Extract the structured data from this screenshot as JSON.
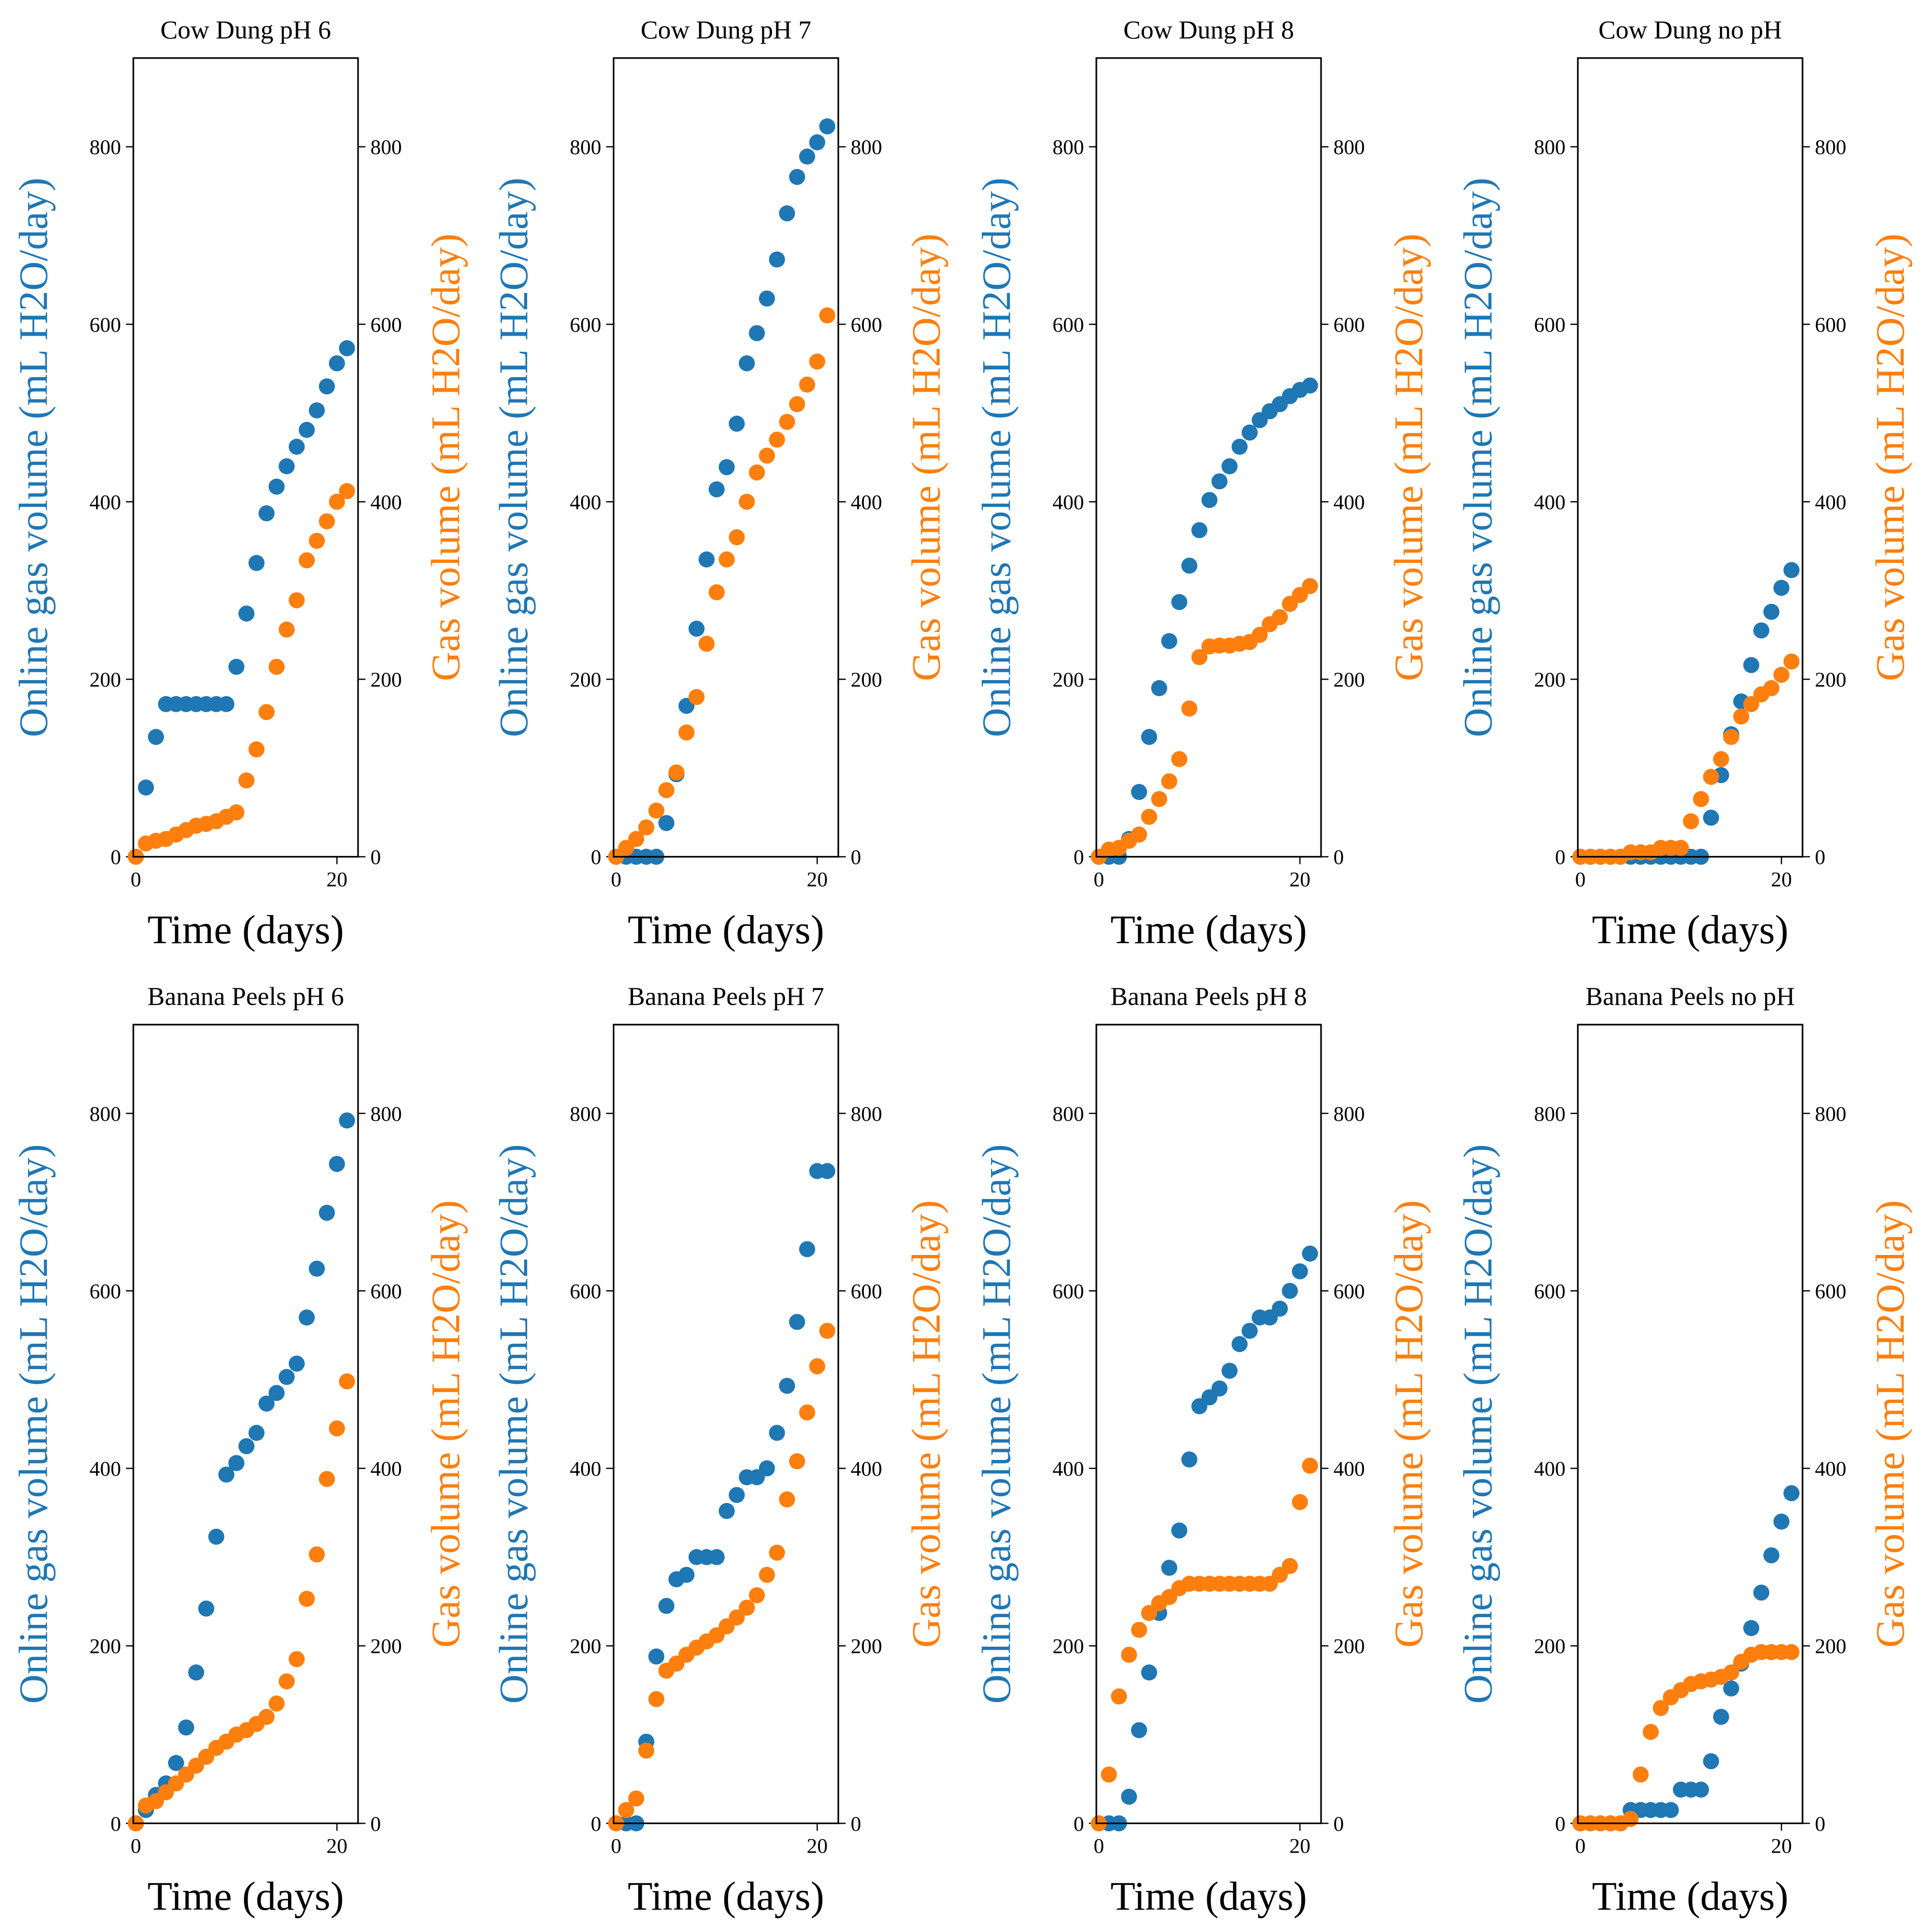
{
  "chart_data": [
    {
      "type": "scatter",
      "title": "Cow Dung pH 6",
      "x_label": "Time (days)",
      "y_label": "Online gas volume (mL H2O/day)",
      "y2_label": "Gas volume (mL H2O/day)",
      "x": [
        0,
        1,
        2,
        3,
        4,
        5,
        6,
        7,
        8,
        9,
        10,
        11,
        12,
        13,
        14,
        15,
        16,
        17,
        18,
        19,
        20,
        21
      ],
      "series": [
        {
          "color": "#1f77b4",
          "values": [
            0,
            78,
            135,
            172,
            172,
            172,
            172,
            172,
            172,
            172,
            214,
            274,
            331,
            387,
            417,
            440,
            462,
            481,
            503,
            530,
            556,
            573
          ]
        },
        {
          "color": "#ff7f0e",
          "axis": "y2",
          "values": [
            0,
            15,
            18,
            20,
            25,
            30,
            35,
            37,
            40,
            45,
            50,
            86,
            121,
            163,
            214,
            256,
            289,
            334,
            356,
            378,
            400,
            412
          ]
        }
      ],
      "xlim": [
        -0.25,
        22.1
      ],
      "xticks": [
        0,
        20
      ],
      "ylim": [
        0,
        900
      ],
      "yticks": [
        0,
        200,
        400,
        600,
        800
      ],
      "y2lim": [
        0,
        900
      ],
      "y2ticks": [
        0,
        200,
        400,
        600,
        800
      ]
    },
    {
      "type": "scatter",
      "title": "Cow Dung pH 7",
      "x_label": "Time (days)",
      "y_label": "Online gas volume (mL H2O/day)",
      "y2_label": "Gas volume (mL H2O/day)",
      "x": [
        0,
        1,
        2,
        3,
        4,
        5,
        6,
        7,
        8,
        9,
        10,
        11,
        12,
        13,
        14,
        15,
        16,
        17,
        18,
        19,
        20,
        21
      ],
      "series": [
        {
          "color": "#1f77b4",
          "values": [
            0,
            0,
            0,
            0,
            0,
            38,
            93,
            170,
            257,
            335,
            414,
            439,
            488,
            556,
            590,
            629,
            673,
            725,
            766,
            789,
            805,
            823
          ]
        },
        {
          "color": "#ff7f0e",
          "axis": "y2",
          "values": [
            0,
            10,
            20,
            33,
            52,
            75,
            95,
            140,
            180,
            240,
            298,
            335,
            360,
            400,
            433,
            452,
            470,
            490,
            510,
            532,
            558,
            610
          ]
        }
      ],
      "xlim": [
        -0.25,
        22.1
      ],
      "xticks": [
        0,
        20
      ],
      "ylim": [
        0,
        900
      ],
      "yticks": [
        0,
        200,
        400,
        600,
        800
      ],
      "y2lim": [
        0,
        900
      ],
      "y2ticks": [
        0,
        200,
        400,
        600,
        800
      ]
    },
    {
      "type": "scatter",
      "title": "Cow Dung pH 8",
      "x_label": "Time (days)",
      "y_label": "Online gas volume (mL H2O/day)",
      "y2_label": "Gas volume (mL H2O/day)",
      "x": [
        0,
        1,
        2,
        3,
        4,
        5,
        6,
        7,
        8,
        9,
        10,
        11,
        12,
        13,
        14,
        15,
        16,
        17,
        18,
        19,
        20,
        21
      ],
      "series": [
        {
          "color": "#1f77b4",
          "values": [
            0,
            0,
            0,
            20,
            73,
            135,
            190,
            243,
            287,
            328,
            368,
            402,
            423,
            440,
            462,
            478,
            492,
            502,
            510,
            519,
            526,
            531
          ]
        },
        {
          "color": "#ff7f0e",
          "axis": "y2",
          "values": [
            0,
            8,
            10,
            18,
            25,
            45,
            65,
            85,
            110,
            167,
            225,
            237,
            238,
            238,
            240,
            242,
            250,
            262,
            270,
            285,
            295,
            305
          ]
        }
      ],
      "xlim": [
        -0.25,
        22.1
      ],
      "xticks": [
        0,
        20
      ],
      "ylim": [
        0,
        900
      ],
      "yticks": [
        0,
        200,
        400,
        600,
        800
      ],
      "y2lim": [
        0,
        900
      ],
      "y2ticks": [
        0,
        200,
        400,
        600,
        800
      ]
    },
    {
      "type": "scatter",
      "title": "Cow Dung no pH",
      "x_label": "Time (days)",
      "y_label": "Online gas volume (mL H2O/day)",
      "y2_label": "Gas volume (mL H2O/day)",
      "x": [
        0,
        1,
        2,
        3,
        4,
        5,
        6,
        7,
        8,
        9,
        10,
        11,
        12,
        13,
        14,
        15,
        16,
        17,
        18,
        19,
        20,
        21
      ],
      "series": [
        {
          "color": "#1f77b4",
          "values": [
            0,
            0,
            0,
            0,
            0,
            0,
            0,
            0,
            0,
            0,
            0,
            0,
            0,
            44,
            92,
            138,
            175,
            216,
            255,
            276,
            303,
            323
          ]
        },
        {
          "color": "#ff7f0e",
          "axis": "y2",
          "values": [
            0,
            0,
            0,
            0,
            0,
            5,
            5,
            5,
            10,
            10,
            10,
            40,
            65,
            90,
            110,
            135,
            158,
            172,
            183,
            190,
            205,
            220
          ]
        }
      ],
      "xlim": [
        -0.25,
        22.1
      ],
      "xticks": [
        0,
        20
      ],
      "ylim": [
        0,
        900
      ],
      "yticks": [
        0,
        200,
        400,
        600,
        800
      ],
      "y2lim": [
        0,
        900
      ],
      "y2ticks": [
        0,
        200,
        400,
        600,
        800
      ]
    },
    {
      "type": "scatter",
      "title": "Banana Peels pH 6",
      "x_label": "Time (days)",
      "y_label": "Online gas volume (mL H2O/day)",
      "y2_label": "Gas volume (mL H2O/day)",
      "x": [
        0,
        1,
        2,
        3,
        4,
        5,
        6,
        7,
        8,
        9,
        10,
        11,
        12,
        13,
        14,
        15,
        16,
        17,
        18,
        19,
        20,
        21
      ],
      "series": [
        {
          "color": "#1f77b4",
          "values": [
            0,
            15,
            32,
            45,
            68,
            108,
            170,
            242,
            323,
            393,
            406,
            425,
            440,
            473,
            485,
            503,
            518,
            570,
            625,
            688,
            743,
            792
          ]
        },
        {
          "color": "#ff7f0e",
          "axis": "y2",
          "values": [
            0,
            20,
            25,
            35,
            45,
            55,
            65,
            75,
            85,
            92,
            100,
            105,
            112,
            120,
            135,
            160,
            185,
            253,
            303,
            388,
            445,
            498
          ]
        }
      ],
      "xlim": [
        -0.25,
        22.1
      ],
      "xticks": [
        0,
        20
      ],
      "ylim": [
        0,
        900
      ],
      "yticks": [
        0,
        200,
        400,
        600,
        800
      ],
      "y2lim": [
        0,
        900
      ],
      "y2ticks": [
        0,
        200,
        400,
        600,
        800
      ]
    },
    {
      "type": "scatter",
      "title": "Banana Peels pH 7",
      "x_label": "Time (days)",
      "y_label": "Online gas volume (mL H2O/day)",
      "y2_label": "Gas volume (mL H2O/day)",
      "x": [
        0,
        1,
        2,
        3,
        4,
        5,
        6,
        7,
        8,
        9,
        10,
        11,
        12,
        13,
        14,
        15,
        16,
        17,
        18,
        19,
        20,
        21
      ],
      "series": [
        {
          "color": "#1f77b4",
          "values": [
            0,
            0,
            0,
            92,
            188,
            245,
            275,
            280,
            300,
            300,
            300,
            352,
            370,
            390,
            390,
            400,
            440,
            493,
            565,
            647,
            735,
            735
          ]
        },
        {
          "color": "#ff7f0e",
          "axis": "y2",
          "values": [
            0,
            15,
            28,
            82,
            140,
            172,
            180,
            190,
            198,
            205,
            212,
            222,
            232,
            243,
            257,
            280,
            305,
            365,
            408,
            463,
            515,
            555
          ]
        }
      ],
      "xlim": [
        -0.25,
        22.1
      ],
      "xticks": [
        0,
        20
      ],
      "ylim": [
        0,
        900
      ],
      "yticks": [
        0,
        200,
        400,
        600,
        800
      ],
      "y2lim": [
        0,
        900
      ],
      "y2ticks": [
        0,
        200,
        400,
        600,
        800
      ]
    },
    {
      "type": "scatter",
      "title": "Banana Peels pH 8",
      "x_label": "Time (days)",
      "y_label": "Online gas volume (mL H2O/day)",
      "y2_label": "Gas volume (mL H2O/day)",
      "x": [
        0,
        1,
        2,
        3,
        4,
        5,
        6,
        7,
        8,
        9,
        10,
        11,
        12,
        13,
        14,
        15,
        16,
        17,
        18,
        19,
        20,
        21
      ],
      "series": [
        {
          "color": "#1f77b4",
          "values": [
            0,
            0,
            0,
            30,
            105,
            170,
            237,
            288,
            330,
            410,
            470,
            480,
            490,
            510,
            540,
            555,
            570,
            570,
            580,
            600,
            622,
            642
          ]
        },
        {
          "color": "#ff7f0e",
          "axis": "y2",
          "values": [
            0,
            55,
            143,
            190,
            218,
            237,
            248,
            255,
            265,
            270,
            270,
            270,
            270,
            270,
            270,
            270,
            270,
            270,
            280,
            290,
            362,
            403
          ]
        }
      ],
      "xlim": [
        -0.25,
        22.1
      ],
      "xticks": [
        0,
        20
      ],
      "ylim": [
        0,
        900
      ],
      "yticks": [
        0,
        200,
        400,
        600,
        800
      ],
      "y2lim": [
        0,
        900
      ],
      "y2ticks": [
        0,
        200,
        400,
        600,
        800
      ]
    },
    {
      "type": "scatter",
      "title": "Banana Peels no pH",
      "x_label": "Time (days)",
      "y_label": "Online gas volume (mL H2O/day)",
      "y2_label": "Gas volume (mL H2O/day)",
      "x": [
        0,
        1,
        2,
        3,
        4,
        5,
        6,
        7,
        8,
        9,
        10,
        11,
        12,
        13,
        14,
        15,
        16,
        17,
        18,
        19,
        20,
        21
      ],
      "series": [
        {
          "color": "#1f77b4",
          "values": [
            0,
            0,
            0,
            0,
            0,
            15,
            15,
            15,
            15,
            15,
            38,
            38,
            38,
            70,
            120,
            152,
            180,
            220,
            260,
            302,
            340,
            372
          ]
        },
        {
          "color": "#ff7f0e",
          "axis": "y2",
          "values": [
            0,
            0,
            0,
            0,
            0,
            5,
            55,
            103,
            130,
            142,
            150,
            157,
            160,
            162,
            165,
            170,
            182,
            190,
            193,
            193,
            193,
            193
          ]
        }
      ],
      "xlim": [
        -0.25,
        22.1
      ],
      "xticks": [
        0,
        20
      ],
      "ylim": [
        0,
        900
      ],
      "yticks": [
        0,
        200,
        400,
        600,
        800
      ],
      "y2lim": [
        0,
        900
      ],
      "y2ticks": [
        0,
        200,
        400,
        600,
        800
      ]
    }
  ]
}
